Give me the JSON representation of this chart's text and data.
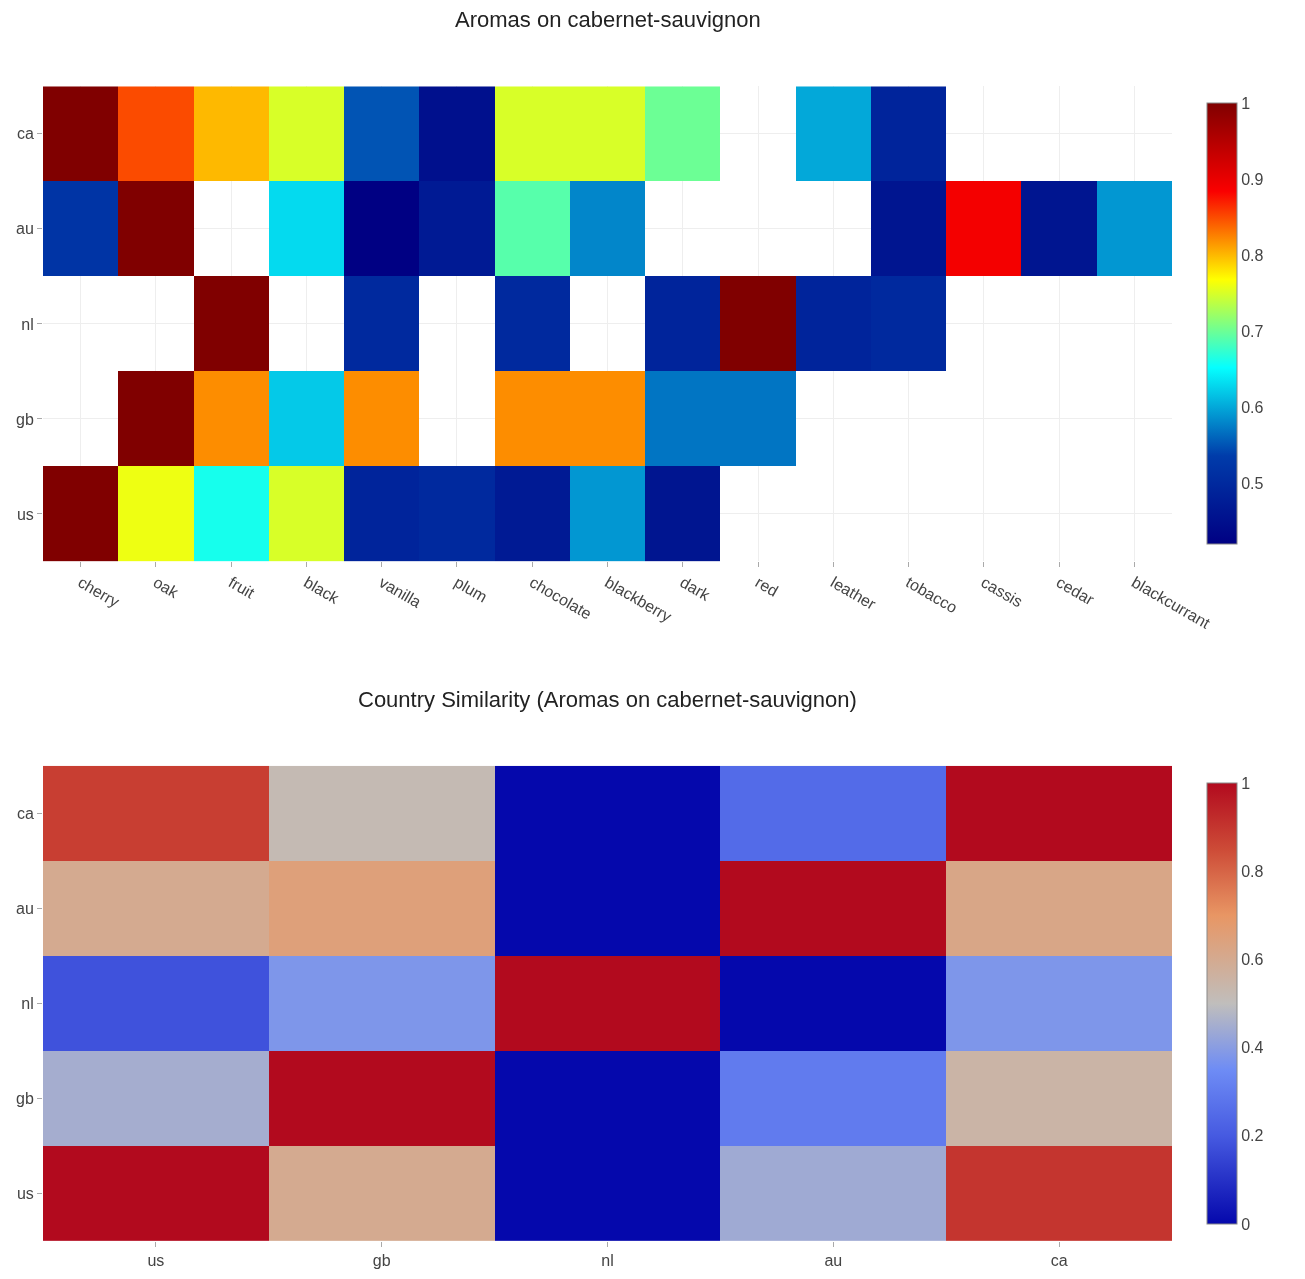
{
  "chart_data": [
    {
      "type": "heatmap",
      "title": "Aromas on cabernet-sauvignon",
      "grid": true,
      "categories": [
        "cherry",
        "oak",
        "fruit",
        "black",
        "vanilla",
        "plum",
        "chocolate",
        "blackberry",
        "dark",
        "red",
        "leather",
        "tobacco",
        "cassis",
        "cedar",
        "blackcurrant"
      ],
      "y_categories": [
        "ca",
        "au",
        "nl",
        "gb",
        "us"
      ],
      "cells": [
        [
          1.0,
          0.85,
          0.8,
          0.75,
          0.55,
          0.45,
          0.75,
          0.75,
          0.7,
          null,
          0.6,
          0.49,
          null,
          null,
          null
        ],
        [
          0.52,
          1.0,
          null,
          0.63,
          0.42,
          0.47,
          0.69,
          0.58,
          null,
          null,
          null,
          0.46,
          0.89,
          0.46,
          0.59
        ],
        [
          null,
          null,
          1.0,
          null,
          0.5,
          null,
          0.5,
          null,
          0.49,
          1.0,
          0.49,
          0.5,
          null,
          null,
          null
        ],
        [
          null,
          1.0,
          0.82,
          0.62,
          0.82,
          null,
          0.82,
          0.82,
          0.57,
          0.57,
          null,
          null,
          null,
          null,
          null
        ],
        [
          1.0,
          0.76,
          0.66,
          0.75,
          0.49,
          0.5,
          0.47,
          0.59,
          0.46,
          null,
          null,
          null,
          null,
          null,
          null
        ]
      ],
      "clim": [
        0.42,
        1
      ],
      "cticks": [
        0.5,
        0.6,
        0.7,
        0.8,
        0.9,
        1
      ]
    },
    {
      "type": "heatmap",
      "title": "Country Similarity (Aromas on cabernet-sauvignon)",
      "grid": false,
      "categories": [
        "us",
        "gb",
        "nl",
        "au",
        "ca"
      ],
      "y_categories": [
        "ca",
        "au",
        "nl",
        "gb",
        "us"
      ],
      "cells": [
        [
          0.88,
          0.52,
          0.0,
          0.25,
          1.0
        ],
        [
          0.6,
          0.65,
          0.0,
          1.0,
          0.62
        ],
        [
          0.18,
          0.38,
          1.0,
          0.0,
          0.38
        ],
        [
          0.45,
          1.0,
          0.0,
          0.3,
          0.55
        ],
        [
          1.0,
          0.6,
          0.0,
          0.44,
          0.9
        ]
      ],
      "clim": [
        0,
        1
      ],
      "cticks": [
        0,
        0.2,
        0.4,
        0.6,
        0.8,
        1
      ]
    }
  ]
}
